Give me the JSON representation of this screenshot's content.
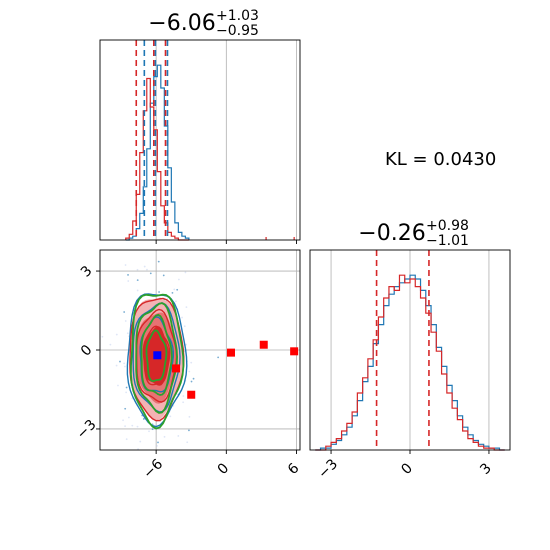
{
  "chart_data": {
    "type": "corner",
    "colors": {
      "blue": "#1f77b4",
      "red": "#d62728",
      "green": "#2ca02c",
      "marker_red": "#ff0000",
      "marker_blue": "#0000ff",
      "grid": "#b0b0b0"
    },
    "kl_text": "KL = 0.0430",
    "panels": {
      "hist_top": {
        "title": {
          "median": "−6.06",
          "upper": "+1.03",
          "lower": "−0.95"
        },
        "xlim": [
          -10.8,
          6.3
        ],
        "ticks_x": [
          -6,
          0,
          6
        ],
        "quantile_lines": {
          "blue": [
            -7.01,
            -6.06,
            -5.03
          ],
          "red": [
            -7.7,
            -6.2,
            -5.2
          ]
        },
        "bins_x": [
          -8.6,
          -8.3,
          -8.0,
          -7.7,
          -7.4,
          -7.1,
          -6.8,
          -6.5,
          -6.2,
          -5.9,
          -5.6,
          -5.3,
          -5.0,
          -4.7,
          -4.4,
          -4.1,
          -3.8,
          -3.5,
          -3.2
        ],
        "blue_counts": [
          0,
          1,
          2,
          6,
          14,
          28,
          48,
          72,
          86,
          92,
          80,
          60,
          38,
          20,
          9,
          4,
          2,
          1
        ],
        "red_counts": [
          1,
          3,
          10,
          24,
          46,
          68,
          85,
          70,
          58,
          36,
          18,
          9,
          4,
          2,
          1,
          0,
          0,
          0
        ],
        "ymax": 100
      },
      "hist_right": {
        "title": {
          "median": "−0.26",
          "upper": "+0.98",
          "lower": "−1.01"
        },
        "xlim": [
          -3.8,
          3.8
        ],
        "ticks_x": [
          -3,
          0,
          3
        ],
        "quantile_lines": {
          "red": [
            -1.27,
            0.72
          ]
        },
        "bins_x": [
          -3.6,
          -3.4,
          -3.2,
          -3.0,
          -2.8,
          -2.6,
          -2.4,
          -2.2,
          -2.0,
          -1.8,
          -1.6,
          -1.4,
          -1.2,
          -1.0,
          -0.8,
          -0.6,
          -0.4,
          -0.2,
          0.0,
          0.2,
          0.4,
          0.6,
          0.8,
          1.0,
          1.2,
          1.4,
          1.6,
          1.8,
          2.0,
          2.2,
          2.4,
          2.6,
          2.8,
          3.0,
          3.2,
          3.4,
          3.6
        ],
        "blue_counts": [
          0,
          1,
          1,
          3,
          5,
          8,
          12,
          18,
          26,
          36,
          44,
          56,
          66,
          76,
          82,
          86,
          88,
          90,
          92,
          90,
          84,
          76,
          66,
          54,
          44,
          34,
          26,
          18,
          12,
          8,
          5,
          3,
          2,
          1,
          1,
          0
        ],
        "red_counts": [
          0,
          0,
          2,
          4,
          6,
          10,
          14,
          20,
          30,
          38,
          48,
          58,
          70,
          80,
          86,
          84,
          92,
          88,
          90,
          86,
          80,
          72,
          62,
          52,
          40,
          30,
          22,
          16,
          10,
          6,
          4,
          2,
          1,
          1,
          0,
          0
        ],
        "ymax": 100
      },
      "scatter_2d": {
        "xlim": [
          -10.8,
          6.3
        ],
        "ylim": [
          -3.8,
          3.8
        ],
        "ticks_x": [
          -6,
          0,
          6
        ],
        "ticks_y": [
          -3,
          0,
          3
        ],
        "center": [
          -6.0,
          -0.26
        ],
        "spread": [
          1.0,
          1.0
        ],
        "red_markers": [
          [
            -4.3,
            -0.7
          ],
          [
            -3.0,
            -1.7
          ],
          [
            0.4,
            -0.1
          ],
          [
            3.2,
            0.2
          ],
          [
            5.8,
            -0.05
          ]
        ],
        "blue_marker": [
          -5.9,
          -0.2
        ]
      }
    }
  }
}
